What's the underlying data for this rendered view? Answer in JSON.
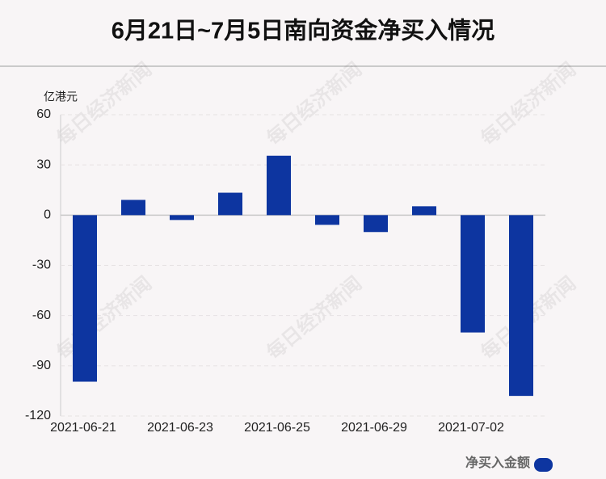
{
  "chart_data": {
    "type": "bar",
    "title": "6月21日~7月5日南向资金净买入情况",
    "y_unit": "亿港元",
    "watermark": "每日经济新闻",
    "categories": [
      "2021-06-21",
      null,
      "2021-06-23",
      null,
      "2021-06-25",
      null,
      "2021-06-29",
      null,
      "2021-07-02",
      null
    ],
    "series": [
      {
        "name": "净买入金额",
        "color": "#0d35a0",
        "values": [
          -99.5,
          9.1,
          -2.9,
          13.4,
          35.5,
          -5.8,
          -10.1,
          5.3,
          -70.1,
          -108
        ]
      }
    ],
    "ylim": [
      -120,
      60
    ],
    "yticks": [
      60,
      30,
      0,
      -30,
      -60,
      -90,
      -120
    ],
    "grid": true,
    "legend": "bottom-right"
  }
}
